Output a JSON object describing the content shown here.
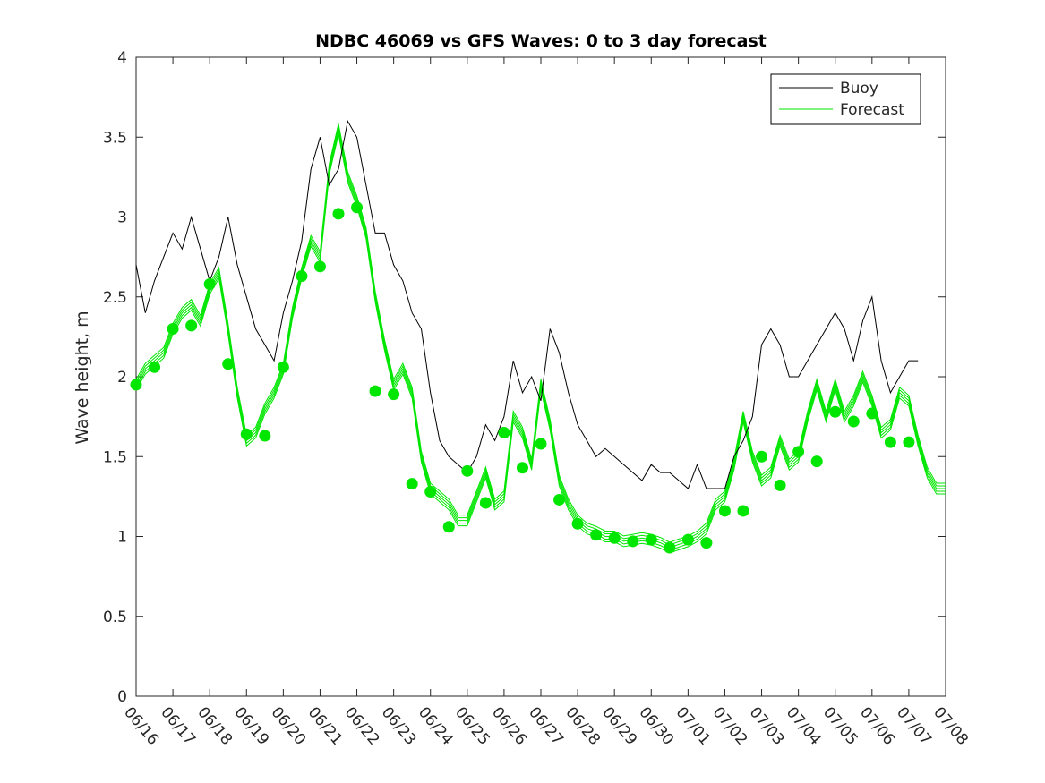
{
  "chart_data": {
    "type": "line",
    "title": "NDBC 46069 vs GFS Waves: 0 to 3 day forecast",
    "xlabel": "",
    "ylabel": "Wave height, m",
    "ylim": [
      0,
      4
    ],
    "yticks": [
      0,
      0.5,
      1,
      1.5,
      2,
      2.5,
      3,
      3.5,
      4
    ],
    "xlim": [
      0,
      22
    ],
    "xtick_labels": [
      "06/16",
      "06/17",
      "06/18",
      "06/19",
      "06/20",
      "06/21",
      "06/22",
      "06/23",
      "06/24",
      "06/25",
      "06/26",
      "06/27",
      "06/28",
      "06/29",
      "06/30",
      "07/01",
      "07/02",
      "07/03",
      "07/04",
      "07/05",
      "07/06",
      "07/07",
      "07/08"
    ],
    "grid": false,
    "legend_position": "top-right",
    "colors": {
      "buoy": "#000000",
      "forecast": "#00e600",
      "axis": "#262626"
    },
    "series": [
      {
        "name": "Buoy",
        "x": [
          0,
          0.25,
          0.5,
          0.75,
          1,
          1.25,
          1.5,
          1.75,
          2,
          2.25,
          2.5,
          2.75,
          3,
          3.25,
          3.5,
          3.75,
          4,
          4.25,
          4.5,
          4.75,
          5,
          5.25,
          5.5,
          5.75,
          6,
          6.25,
          6.5,
          6.75,
          7,
          7.25,
          7.5,
          7.75,
          8,
          8.25,
          8.5,
          8.75,
          9,
          9.25,
          9.5,
          9.75,
          10,
          10.25,
          10.5,
          10.75,
          11,
          11.25,
          11.5,
          11.75,
          12,
          12.25,
          12.5,
          12.75,
          13,
          13.25,
          13.5,
          13.75,
          14,
          14.25,
          14.5,
          14.75,
          15,
          15.25,
          15.5,
          15.75,
          16,
          16.25,
          16.5,
          16.75,
          17,
          17.25,
          17.5,
          17.75,
          18,
          18.25,
          18.5,
          18.75,
          19,
          19.25,
          19.5,
          19.75,
          20,
          20.25,
          20.5,
          20.75,
          21,
          21.25
        ],
        "values": [
          2.7,
          2.4,
          2.6,
          2.75,
          2.9,
          2.8,
          3.0,
          2.8,
          2.6,
          2.75,
          3.0,
          2.7,
          2.5,
          2.3,
          2.2,
          2.1,
          2.4,
          2.6,
          2.85,
          3.3,
          3.5,
          3.2,
          3.3,
          3.6,
          3.5,
          3.2,
          2.9,
          2.9,
          2.7,
          2.6,
          2.4,
          2.3,
          1.9,
          1.6,
          1.5,
          1.45,
          1.4,
          1.5,
          1.7,
          1.6,
          1.75,
          2.1,
          1.9,
          2.0,
          1.85,
          2.3,
          2.15,
          1.9,
          1.7,
          1.6,
          1.5,
          1.55,
          1.5,
          1.45,
          1.4,
          1.35,
          1.45,
          1.4,
          1.4,
          1.35,
          1.3,
          1.45,
          1.3,
          1.3,
          1.3,
          1.5,
          1.6,
          1.75,
          2.2,
          2.3,
          2.2,
          2.0,
          2.0,
          2.1,
          2.2,
          2.3,
          2.4,
          2.3,
          2.1,
          2.35,
          2.5,
          2.1,
          1.9,
          2.0,
          2.1,
          2.1
        ]
      },
      {
        "name": "Forecast",
        "x": [
          0,
          0.25,
          0.5,
          0.75,
          1,
          1.25,
          1.5,
          1.75,
          2,
          2.25,
          2.5,
          2.75,
          3,
          3.25,
          3.5,
          3.75,
          4,
          4.25,
          4.5,
          4.75,
          5,
          5.25,
          5.5,
          5.75,
          6,
          6.25,
          6.5,
          6.75,
          7,
          7.25,
          7.5,
          7.75,
          8,
          8.25,
          8.5,
          8.75,
          9,
          9.25,
          9.5,
          9.75,
          10,
          10.25,
          10.5,
          10.75,
          11,
          11.25,
          11.5,
          11.75,
          12,
          12.25,
          12.5,
          12.75,
          13,
          13.25,
          13.5,
          13.75,
          14,
          14.25,
          14.5,
          14.75,
          15,
          15.25,
          15.5,
          15.75,
          16,
          16.25,
          16.5,
          16.75,
          17,
          17.25,
          17.5,
          17.75,
          18,
          18.25,
          18.5,
          18.75,
          19,
          19.25,
          19.5,
          19.75,
          20,
          20.25,
          20.5,
          20.75,
          21,
          21.25,
          21.5,
          21.75,
          22
        ],
        "values": [
          1.95,
          2.05,
          2.1,
          2.15,
          2.3,
          2.4,
          2.45,
          2.35,
          2.55,
          2.65,
          2.3,
          1.9,
          1.6,
          1.65,
          1.8,
          1.9,
          2.05,
          2.4,
          2.65,
          2.85,
          2.75,
          3.3,
          3.55,
          3.25,
          3.1,
          2.9,
          2.5,
          2.2,
          1.95,
          2.05,
          1.9,
          1.5,
          1.3,
          1.25,
          1.2,
          1.1,
          1.1,
          1.25,
          1.4,
          1.2,
          1.25,
          1.75,
          1.65,
          1.45,
          1.95,
          1.7,
          1.35,
          1.2,
          1.1,
          1.05,
          1.03,
          1.0,
          1.0,
          0.97,
          0.98,
          0.99,
          0.98,
          0.96,
          0.93,
          0.95,
          0.97,
          1.0,
          1.05,
          1.2,
          1.25,
          1.45,
          1.75,
          1.5,
          1.35,
          1.4,
          1.6,
          1.45,
          1.5,
          1.75,
          1.95,
          1.75,
          1.95,
          1.75,
          1.85,
          2.0,
          1.85,
          1.65,
          1.7,
          1.9,
          1.85,
          1.6,
          1.4,
          1.3,
          1.3
        ],
        "markers": {
          "x": [
            0,
            0.5,
            1,
            1.5,
            2,
            2.5,
            3,
            3.5,
            4,
            4.5,
            5,
            5.5,
            6,
            6.5,
            7,
            7.5,
            8,
            8.5,
            9,
            9.5,
            10,
            10.5,
            11,
            11.5,
            12,
            12.5,
            13,
            13.5,
            14,
            14.5,
            15,
            15.5,
            16,
            16.5,
            17,
            17.5,
            18,
            18.5,
            19,
            19.5,
            20,
            20.5,
            21
          ],
          "values": [
            1.95,
            2.06,
            2.3,
            2.32,
            2.58,
            2.08,
            1.64,
            1.63,
            2.06,
            2.63,
            2.69,
            3.02,
            3.06,
            1.91,
            1.89,
            1.33,
            1.28,
            1.06,
            1.41,
            1.21,
            1.65,
            1.43,
            1.58,
            1.23,
            1.08,
            1.01,
            0.99,
            0.97,
            0.98,
            0.93,
            0.98,
            0.96,
            1.16,
            1.16,
            1.5,
            1.32,
            1.53,
            1.47,
            1.78,
            1.72,
            1.77,
            1.59,
            1.59
          ]
        }
      }
    ]
  }
}
